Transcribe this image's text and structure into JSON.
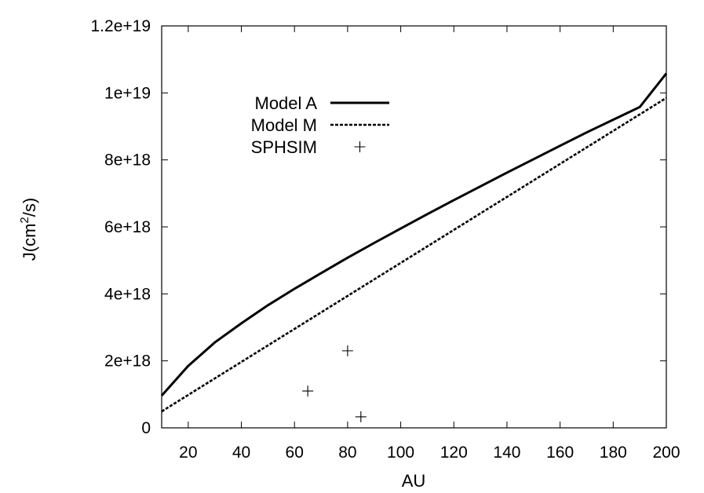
{
  "chart_data": {
    "type": "line",
    "title": "",
    "xlabel": "AU",
    "ylabel_main": "J(cm",
    "ylabel_sup": "2",
    "ylabel_tail": "/s)",
    "xlim": [
      10,
      200
    ],
    "ylim": [
      0,
      1.2e+19
    ],
    "xticks": [
      20,
      40,
      60,
      80,
      100,
      120,
      140,
      160,
      180,
      200
    ],
    "xtick_labels": [
      "20",
      "40",
      "60",
      "80",
      "100",
      "120",
      "140",
      "160",
      "180",
      "200"
    ],
    "yticks": [
      0,
      2e+18,
      4e+18,
      6e+18,
      8e+18,
      1e+19,
      1.2e+19
    ],
    "ytick_labels": [
      "0",
      "2e+18",
      "4e+18",
      "6e+18",
      "8e+18",
      "1e+19",
      "1.2e+19"
    ],
    "grid": false,
    "legend_position": "top-left",
    "series": [
      {
        "name": "Model A",
        "style": "solid",
        "color": "#000000",
        "x": [
          10,
          20,
          30,
          40,
          50,
          60,
          70,
          80,
          90,
          100,
          110,
          120,
          130,
          140,
          150,
          160,
          170,
          180,
          190,
          200
        ],
        "y": [
          9.6e+17,
          1.85e+18,
          2.55e+18,
          3.12e+18,
          3.66e+18,
          4.15e+18,
          4.62e+18,
          5.08e+18,
          5.52e+18,
          5.95e+18,
          6.38e+18,
          6.8e+18,
          7.21e+18,
          7.62e+18,
          8.02e+18,
          8.42e+18,
          8.82e+18,
          9.2e+18,
          9.58e+18,
          1.058e+19
        ]
      },
      {
        "name": "Model M",
        "style": "dashed",
        "color": "#000000",
        "x": [
          10,
          200
        ],
        "y": [
          4.9e+17,
          9.85e+18
        ]
      },
      {
        "name": "SPHSIM",
        "style": "points",
        "marker": "plus",
        "color": "#000000",
        "x": [
          65,
          80,
          85
        ],
        "y": [
          1.1e+18,
          2.3e+18,
          3.3e+17
        ]
      }
    ]
  }
}
